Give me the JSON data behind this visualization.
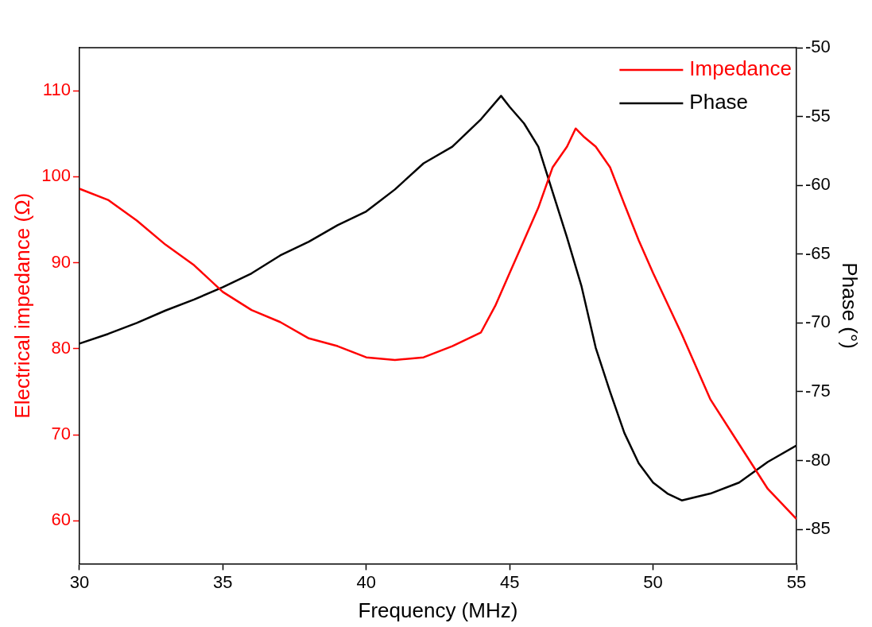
{
  "chart_data": {
    "type": "line",
    "xlabel": "Frequency (MHz)",
    "ylabel": "Electrical impedance (Ω)",
    "y2label": "Phase (°)",
    "xlim": [
      30,
      55
    ],
    "xticks": [
      30,
      35,
      40,
      45,
      50,
      55
    ],
    "ylim": [
      55,
      115
    ],
    "yticks": [
      60,
      70,
      80,
      90,
      100,
      110
    ],
    "y2lim": [
      -87.5,
      -50
    ],
    "y2ticks": [
      -85,
      -80,
      -75,
      -70,
      -65,
      -60,
      -55,
      -50
    ],
    "grid": false,
    "legend": "top right",
    "marker": "none",
    "line_style": "solid",
    "series": [
      {
        "name": "Impedance",
        "color": "#ff0000",
        "x": [
          30,
          31,
          32,
          33,
          34,
          35,
          36,
          37,
          38,
          39,
          40,
          41,
          42,
          43,
          44,
          44.5,
          45,
          45.5,
          46,
          46.5,
          47,
          47.3,
          47.6,
          48,
          48.5,
          49,
          49.5,
          50,
          51,
          52,
          53,
          54,
          55
        ],
        "values": [
          98.6,
          97.3,
          94.9,
          92.1,
          89.7,
          86.6,
          84.5,
          83.1,
          81.2,
          80.3,
          79.0,
          78.7,
          79.0,
          80.3,
          81.9,
          85.0,
          88.8,
          92.6,
          96.4,
          101.1,
          103.5,
          105.6,
          104.6,
          103.5,
          101.1,
          96.8,
          92.6,
          88.8,
          81.7,
          74.1,
          68.9,
          63.7,
          60.2
        ]
      },
      {
        "name": "Phase",
        "color": "#000000",
        "axis": "y2",
        "x": [
          30,
          31,
          32,
          33,
          34,
          35,
          36,
          37,
          38,
          39,
          40,
          41,
          42,
          43,
          44,
          44.7,
          45,
          45.5,
          46,
          46.5,
          47,
          47.5,
          48,
          48.5,
          49,
          49.5,
          50,
          50.5,
          51,
          52,
          53,
          54,
          55
        ],
        "values": [
          -71.5,
          -70.8,
          -70.0,
          -69.1,
          -68.3,
          -67.4,
          -66.4,
          -65.1,
          -64.1,
          -62.9,
          -61.9,
          -60.3,
          -58.4,
          -57.2,
          -55.2,
          -53.5,
          -54.3,
          -55.5,
          -57.2,
          -60.5,
          -63.8,
          -67.3,
          -71.8,
          -75.0,
          -78.0,
          -80.2,
          -81.6,
          -82.4,
          -82.9,
          -82.4,
          -81.6,
          -80.1,
          -78.9
        ]
      }
    ]
  }
}
